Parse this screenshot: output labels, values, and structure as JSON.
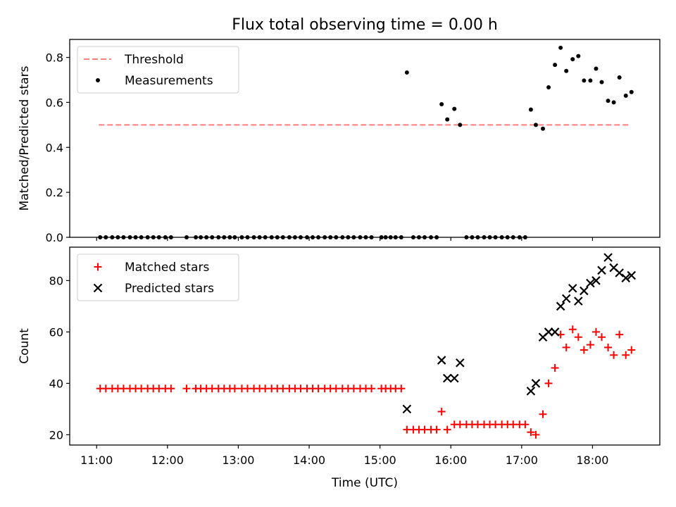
{
  "figure": {
    "title": "Flux total observing time = 0.00 h",
    "xlabel": "Time (UTC)"
  },
  "chart_data": [
    {
      "type": "scatter",
      "ylabel": "Matched/Predicted stars",
      "ylim": [
        0,
        0.88
      ],
      "yticks": [
        0.0,
        0.2,
        0.4,
        0.6,
        0.8
      ],
      "xlim": [
        10.62,
        18.95
      ],
      "xticks": [
        11,
        12,
        13,
        14,
        15,
        16,
        17,
        18
      ],
      "xticklabels": [
        "11:00",
        "12:00",
        "13:00",
        "14:00",
        "15:00",
        "16:00",
        "17:00",
        "18:00"
      ],
      "legend": {
        "placement": "upper-left",
        "entries": [
          "Threshold",
          "Measurements"
        ]
      },
      "threshold": {
        "name": "Threshold",
        "value": 0.5,
        "x_start": 11.03,
        "x_end": 18.53,
        "color": "#ff7f7f"
      },
      "series": [
        {
          "name": "Measurements",
          "color": "#000000",
          "marker": "dot",
          "x": [
            11.05,
            11.13,
            11.22,
            11.3,
            11.38,
            11.47,
            11.55,
            11.63,
            11.72,
            11.8,
            11.88,
            11.97,
            12.05,
            12.27,
            12.4,
            12.47,
            12.55,
            12.63,
            12.72,
            12.8,
            12.88,
            12.95,
            13.05,
            13.13,
            13.22,
            13.3,
            13.38,
            13.47,
            13.55,
            13.63,
            13.72,
            13.8,
            13.88,
            13.97,
            14.05,
            14.13,
            14.22,
            14.3,
            14.38,
            14.47,
            14.55,
            14.63,
            14.72,
            14.8,
            14.88,
            15.02,
            15.08,
            15.15,
            15.22,
            15.3,
            15.38,
            15.47,
            15.55,
            15.63,
            15.72,
            15.8,
            15.87,
            15.95,
            16.05,
            16.13,
            16.22,
            16.3,
            16.38,
            16.47,
            16.55,
            16.63,
            16.72,
            16.8,
            16.88,
            16.97,
            17.05,
            17.13,
            17.2,
            17.3,
            17.38,
            17.47,
            17.55,
            17.63,
            17.72,
            17.8,
            17.88,
            17.97,
            18.05,
            18.13,
            18.22,
            18.3,
            18.38,
            18.47,
            18.55
          ],
          "y": [
            0,
            0,
            0,
            0,
            0,
            0,
            0,
            0,
            0,
            0,
            0,
            0,
            0,
            0,
            0,
            0,
            0,
            0,
            0,
            0,
            0,
            0,
            0,
            0,
            0,
            0,
            0,
            0,
            0,
            0,
            0,
            0,
            0,
            0,
            0,
            0,
            0,
            0,
            0,
            0,
            0,
            0,
            0,
            0,
            0,
            0,
            0,
            0,
            0,
            0,
            0.733,
            0,
            0,
            0,
            0,
            0,
            0.592,
            0.524,
            0.571,
            0.5,
            0,
            0,
            0,
            0,
            0,
            0,
            0,
            0,
            0,
            0,
            0,
            0.568,
            0.5,
            0.483,
            0.667,
            0.767,
            0.843,
            0.74,
            0.792,
            0.806,
            0.697,
            0.697,
            0.75,
            0.69,
            0.607,
            0.6,
            0.711,
            0.63,
            0.646
          ]
        }
      ]
    },
    {
      "type": "scatter",
      "ylabel": "Count",
      "ylim": [
        16,
        93
      ],
      "yticks": [
        20,
        40,
        60,
        80
      ],
      "xlim": [
        10.62,
        18.95
      ],
      "xticks": [
        11,
        12,
        13,
        14,
        15,
        16,
        17,
        18
      ],
      "xticklabels": [
        "11:00",
        "12:00",
        "13:00",
        "14:00",
        "15:00",
        "16:00",
        "17:00",
        "18:00"
      ],
      "legend": {
        "placement": "upper-left",
        "entries": [
          "Matched stars",
          "Predicted stars"
        ]
      },
      "series": [
        {
          "name": "Matched stars",
          "color": "#ff0000",
          "marker": "plus",
          "x": [
            11.05,
            11.13,
            11.22,
            11.3,
            11.38,
            11.47,
            11.55,
            11.63,
            11.72,
            11.8,
            11.88,
            11.97,
            12.05,
            12.27,
            12.4,
            12.47,
            12.55,
            12.63,
            12.72,
            12.8,
            12.88,
            12.95,
            13.05,
            13.13,
            13.22,
            13.3,
            13.38,
            13.47,
            13.55,
            13.63,
            13.72,
            13.8,
            13.88,
            13.97,
            14.05,
            14.13,
            14.22,
            14.3,
            14.38,
            14.47,
            14.55,
            14.63,
            14.72,
            14.8,
            14.88,
            15.02,
            15.08,
            15.15,
            15.22,
            15.3,
            15.38,
            15.47,
            15.55,
            15.63,
            15.72,
            15.8,
            15.87,
            15.95,
            16.05,
            16.13,
            16.22,
            16.3,
            16.38,
            16.47,
            16.55,
            16.63,
            16.72,
            16.8,
            16.88,
            16.97,
            17.05,
            17.13,
            17.2,
            17.3,
            17.38,
            17.47,
            17.55,
            17.63,
            17.72,
            17.8,
            17.88,
            17.97,
            18.05,
            18.13,
            18.22,
            18.3,
            18.38,
            18.47,
            18.55
          ],
          "y": [
            38,
            38,
            38,
            38,
            38,
            38,
            38,
            38,
            38,
            38,
            38,
            38,
            38,
            38,
            38,
            38,
            38,
            38,
            38,
            38,
            38,
            38,
            38,
            38,
            38,
            38,
            38,
            38,
            38,
            38,
            38,
            38,
            38,
            38,
            38,
            38,
            38,
            38,
            38,
            38,
            38,
            38,
            38,
            38,
            38,
            38,
            38,
            38,
            38,
            38,
            22,
            22,
            22,
            22,
            22,
            22,
            29,
            22,
            24,
            24,
            24,
            24,
            24,
            24,
            24,
            24,
            24,
            24,
            24,
            24,
            24,
            21,
            20,
            28,
            40,
            46,
            59,
            54,
            61,
            58,
            53,
            55,
            60,
            58,
            54,
            51,
            59,
            51,
            53
          ]
        },
        {
          "name": "Predicted stars",
          "color": "#000000",
          "marker": "x",
          "x": [
            15.38,
            15.87,
            15.95,
            16.05,
            16.13,
            17.13,
            17.2,
            17.3,
            17.38,
            17.47,
            17.55,
            17.63,
            17.72,
            17.8,
            17.88,
            17.97,
            18.05,
            18.13,
            18.22,
            18.3,
            18.38,
            18.47,
            18.55
          ],
          "y": [
            30,
            49,
            42,
            42,
            48,
            37,
            40,
            58,
            60,
            60,
            70,
            73,
            77,
            72,
            76,
            79,
            80,
            84,
            89,
            85,
            83,
            81,
            82
          ]
        }
      ]
    }
  ]
}
